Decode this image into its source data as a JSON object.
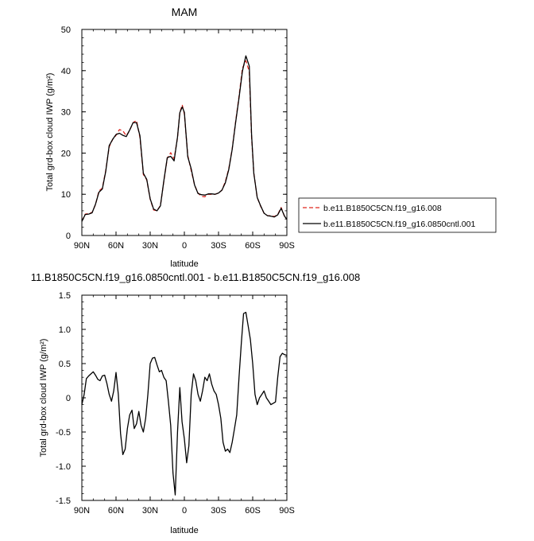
{
  "chart_data": [
    {
      "type": "line",
      "title": "MAM",
      "xlabel": "latitude",
      "ylabel": "Total grd-box cloud IWP (g/m²)",
      "xlim": [
        90,
        -90
      ],
      "ylim": [
        0,
        50
      ],
      "xticks": [
        90,
        60,
        30,
        0,
        -30,
        -60,
        -90
      ],
      "xtick_labels": [
        "90N",
        "60N",
        "30N",
        "0",
        "30S",
        "60S",
        "90S"
      ],
      "yticks": [
        0,
        10,
        20,
        30,
        40,
        50
      ],
      "ytick_labels": [
        "0",
        "10",
        "20",
        "30",
        "40",
        "50"
      ],
      "legend_placement": "right",
      "series": [
        {
          "name": "b.e11.B1850C5CN.f19_g16.008",
          "color": "#e0261f",
          "style": "dashed",
          "x": [
            90,
            87,
            84,
            81,
            78,
            75,
            72,
            69,
            66,
            63,
            60,
            57,
            54,
            51,
            48,
            45,
            42,
            39,
            36,
            33,
            30,
            27,
            24,
            21,
            18,
            15,
            12,
            9,
            6,
            4,
            1.9,
            0,
            -3,
            -6,
            -9,
            -12,
            -15,
            -18,
            -21,
            -24,
            -27,
            -30,
            -33,
            -36,
            -39,
            -42,
            -45,
            -48,
            -51,
            -54,
            -57,
            -59,
            -61,
            -64,
            -67,
            -70,
            -73,
            -76,
            -79,
            -82,
            -85,
            -88,
            -90
          ],
          "y": [
            3.5,
            5.2,
            5.3,
            5.6,
            7.5,
            10.8,
            11.5,
            15.8,
            21.5,
            23.3,
            24.3,
            25.7,
            25.4,
            24.2,
            25.5,
            27.4,
            27.9,
            23.8,
            14.8,
            13.5,
            8.8,
            6.2,
            6.0,
            7.3,
            13.2,
            18.7,
            20.1,
            18.6,
            23.8,
            29.8,
            31.7,
            29.5,
            19.4,
            15.8,
            12.2,
            10.3,
            9.5,
            9.4,
            10.0,
            10.0,
            10.0,
            10.3,
            11.0,
            13.1,
            16.2,
            21.0,
            27.6,
            33.8,
            40.6,
            42.4,
            39.8,
            23.8,
            15.1,
            9.2,
            7.1,
            5.4,
            4.8,
            4.8,
            4.6,
            5.1,
            6.8,
            4.6,
            3.9
          ]
        },
        {
          "name": "b.e11.B1850C5CN.f19_g16.0850cntl.001",
          "color": "#000000",
          "style": "solid",
          "x": [
            90,
            87,
            84,
            81,
            78,
            75,
            72,
            69,
            66,
            63,
            60,
            57,
            54,
            51,
            48,
            45,
            42,
            39,
            36,
            33,
            30,
            27,
            24,
            21,
            18,
            15,
            12,
            9,
            6,
            4,
            1.9,
            0,
            -3,
            -6,
            -9,
            -12,
            -15,
            -18,
            -21,
            -24,
            -27,
            -30,
            -33,
            -36,
            -39,
            -42,
            -45,
            -48,
            -51,
            -54,
            -57,
            -59,
            -61,
            -64,
            -67,
            -70,
            -73,
            -76,
            -79,
            -82,
            -85,
            -88,
            -90
          ],
          "y": [
            3.4,
            5.1,
            5.2,
            5.5,
            7.6,
            10.5,
            11.3,
            15.6,
            21.8,
            23.3,
            24.5,
            24.8,
            24.3,
            24.0,
            25.6,
            27.4,
            27.4,
            24.2,
            15.1,
            13.6,
            8.9,
            6.4,
            6.0,
            7.2,
            13.3,
            18.9,
            19.2,
            18.1,
            23.9,
            29.8,
            31.2,
            29.9,
            19.1,
            16.2,
            12.2,
            10.2,
            9.9,
            9.8,
            10.1,
            10.1,
            10.0,
            10.3,
            11.0,
            12.8,
            16.0,
            20.9,
            27.4,
            33.4,
            39.9,
            43.6,
            41.1,
            24.4,
            15.1,
            9.2,
            7.2,
            5.4,
            4.8,
            4.7,
            4.5,
            5.0,
            6.6,
            4.7,
            3.9
          ]
        }
      ]
    },
    {
      "type": "line",
      "title": "11.B1850C5CN.f19_g16.0850cntl.001 - b.e11.B1850C5CN.f19_g16.008",
      "xlabel": "latitude",
      "ylabel": "Total grd-box cloud IWP (g/m²)",
      "xlim": [
        90,
        -90
      ],
      "ylim": [
        -1.5,
        1.5
      ],
      "xticks": [
        90,
        60,
        30,
        0,
        -30,
        -60,
        -90
      ],
      "xtick_labels": [
        "90N",
        "60N",
        "30N",
        "0",
        "30S",
        "60S",
        "90S"
      ],
      "yticks": [
        -1.5,
        -1.0,
        -0.5,
        0,
        0.5,
        1.0,
        1.5
      ],
      "ytick_labels": [
        "-1.5",
        "-1.0",
        "-0.5",
        "0",
        "0.5",
        "1.0",
        "1.5"
      ],
      "series": [
        {
          "color": "#000000",
          "style": "solid",
          "x": [
            90,
            88,
            86,
            84,
            82,
            80,
            78,
            76,
            74,
            72,
            70,
            68,
            66,
            64,
            62,
            60,
            58,
            56,
            54,
            52,
            50,
            48,
            46,
            44,
            42,
            40,
            38,
            36,
            34,
            32,
            30,
            28,
            26,
            24,
            22,
            20,
            18,
            16,
            14,
            12,
            10,
            8,
            6,
            4,
            2,
            0,
            -2,
            -4,
            -6,
            -8,
            -10,
            -12,
            -14,
            -16,
            -18,
            -20,
            -22,
            -24,
            -26,
            -28,
            -30,
            -32,
            -34,
            -36,
            -38,
            -40,
            -42,
            -44,
            -46,
            -48,
            -50,
            -52,
            -54,
            -56,
            -58,
            -60,
            -62,
            -64,
            -66,
            -68,
            -70,
            -72,
            -74,
            -76,
            -78,
            -80,
            -82,
            -84,
            -86,
            -88,
            -90
          ],
          "y": [
            -0.1,
            0.05,
            0.28,
            0.32,
            0.35,
            0.38,
            0.33,
            0.27,
            0.25,
            0.32,
            0.33,
            0.21,
            0.05,
            -0.05,
            0.1,
            0.37,
            0.05,
            -0.52,
            -0.83,
            -0.75,
            -0.45,
            -0.25,
            -0.18,
            -0.45,
            -0.38,
            -0.2,
            -0.4,
            -0.5,
            -0.3,
            0.05,
            0.5,
            0.58,
            0.59,
            0.48,
            0.38,
            0.4,
            0.3,
            0.25,
            -0.05,
            -0.4,
            -1.1,
            -1.42,
            -0.5,
            0.15,
            -0.35,
            -0.6,
            -0.95,
            -0.7,
            0.05,
            0.35,
            0.25,
            0.05,
            -0.05,
            0.1,
            0.3,
            0.25,
            0.35,
            0.2,
            0.1,
            0.05,
            -0.1,
            -0.3,
            -0.65,
            -0.78,
            -0.75,
            -0.8,
            -0.65,
            -0.45,
            -0.25,
            0.3,
            0.8,
            1.23,
            1.25,
            1.05,
            0.85,
            0.5,
            0.05,
            -0.1,
            0.0,
            0.05,
            0.1,
            0.0,
            -0.05,
            -0.1,
            -0.08,
            -0.06,
            0.3,
            0.6,
            0.65,
            0.63,
            0.62
          ]
        }
      ]
    }
  ]
}
